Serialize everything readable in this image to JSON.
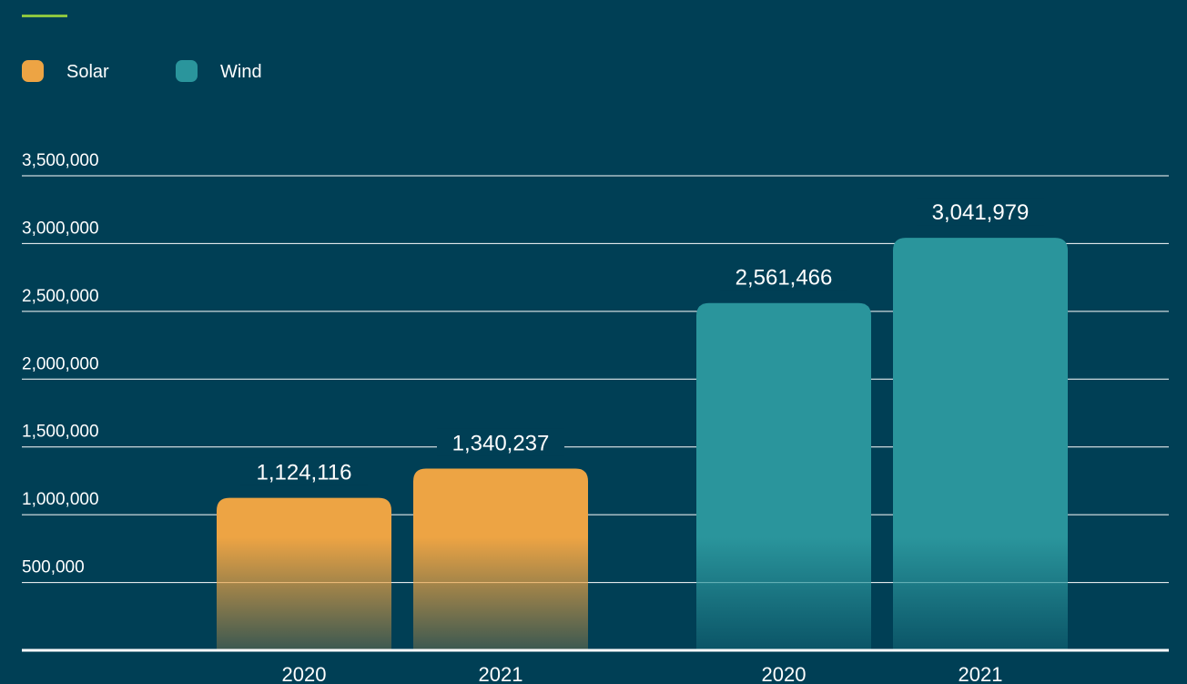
{
  "colors": {
    "background": "#003f55",
    "accent_rule": "#8dc63f",
    "gridline": "#ffffff",
    "axis": "#ffffff",
    "text": "#ffffff"
  },
  "chart_data": {
    "type": "bar",
    "title": "",
    "xlabel": "",
    "ylabel": "",
    "ylim": [
      0,
      3500000
    ],
    "yticks": [
      500000,
      1000000,
      1500000,
      2000000,
      2500000,
      3000000,
      3500000
    ],
    "ytick_labels": [
      "500,000",
      "1,000,000",
      "1,500,000",
      "2,000,000",
      "2,500,000",
      "3,000,000",
      "3,500,000"
    ],
    "grid": true,
    "legend_position": "top-left",
    "series": [
      {
        "name": "Solar",
        "color": "#eda444",
        "categories": [
          "2020",
          "2021"
        ],
        "values": [
          1124116,
          1340237
        ],
        "labels": [
          "1,124,116",
          "1,340,237"
        ]
      },
      {
        "name": "Wind",
        "color": "#2a959c",
        "categories": [
          "2020",
          "2021"
        ],
        "values": [
          2561466,
          3041979
        ],
        "labels": [
          "2,561,466",
          "3,041,979"
        ]
      }
    ]
  }
}
